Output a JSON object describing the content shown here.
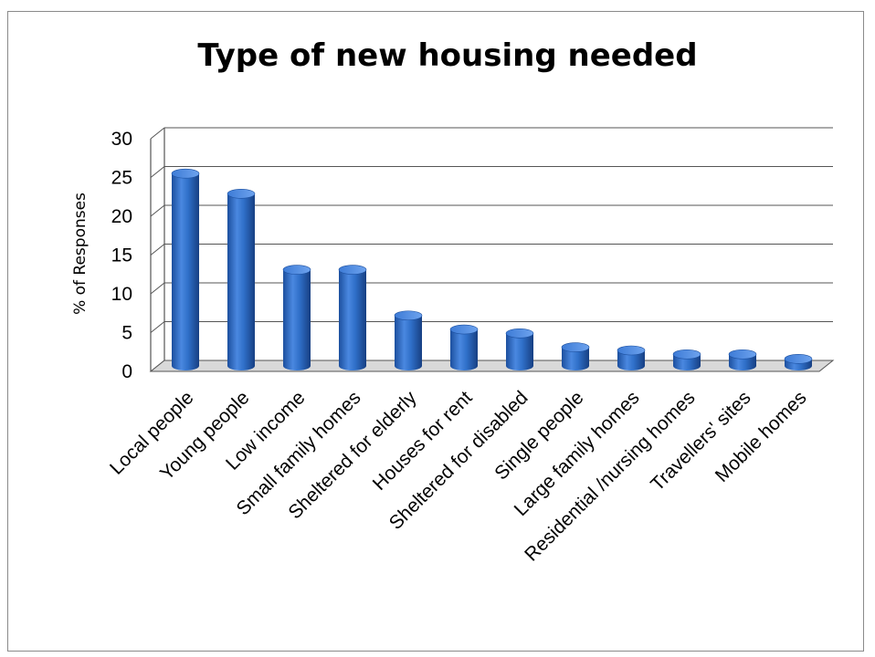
{
  "chart_data": {
    "type": "bar",
    "title": "Type of new housing needed",
    "xlabel": "",
    "ylabel": "% of Responses",
    "ylim": [
      0,
      30
    ],
    "yticks": [
      "0",
      "5",
      "10",
      "15",
      "20",
      "25",
      "30"
    ],
    "grid": true,
    "legend": "none",
    "bar_color": "#2f6fc8",
    "categories": [
      "Local people",
      "Young people",
      "Low income",
      "Small family homes",
      "Sheltered for elderly",
      "Houses for rent",
      "Sheltered for disabled",
      "Single people",
      "Large family homes",
      "Residential /nursing homes",
      "Travellers' sites",
      "Mobile homes"
    ],
    "values": [
      24.8,
      22.2,
      12.4,
      12.4,
      6.5,
      4.7,
      4.2,
      2.4,
      2.0,
      1.5,
      1.5,
      0.9
    ]
  }
}
